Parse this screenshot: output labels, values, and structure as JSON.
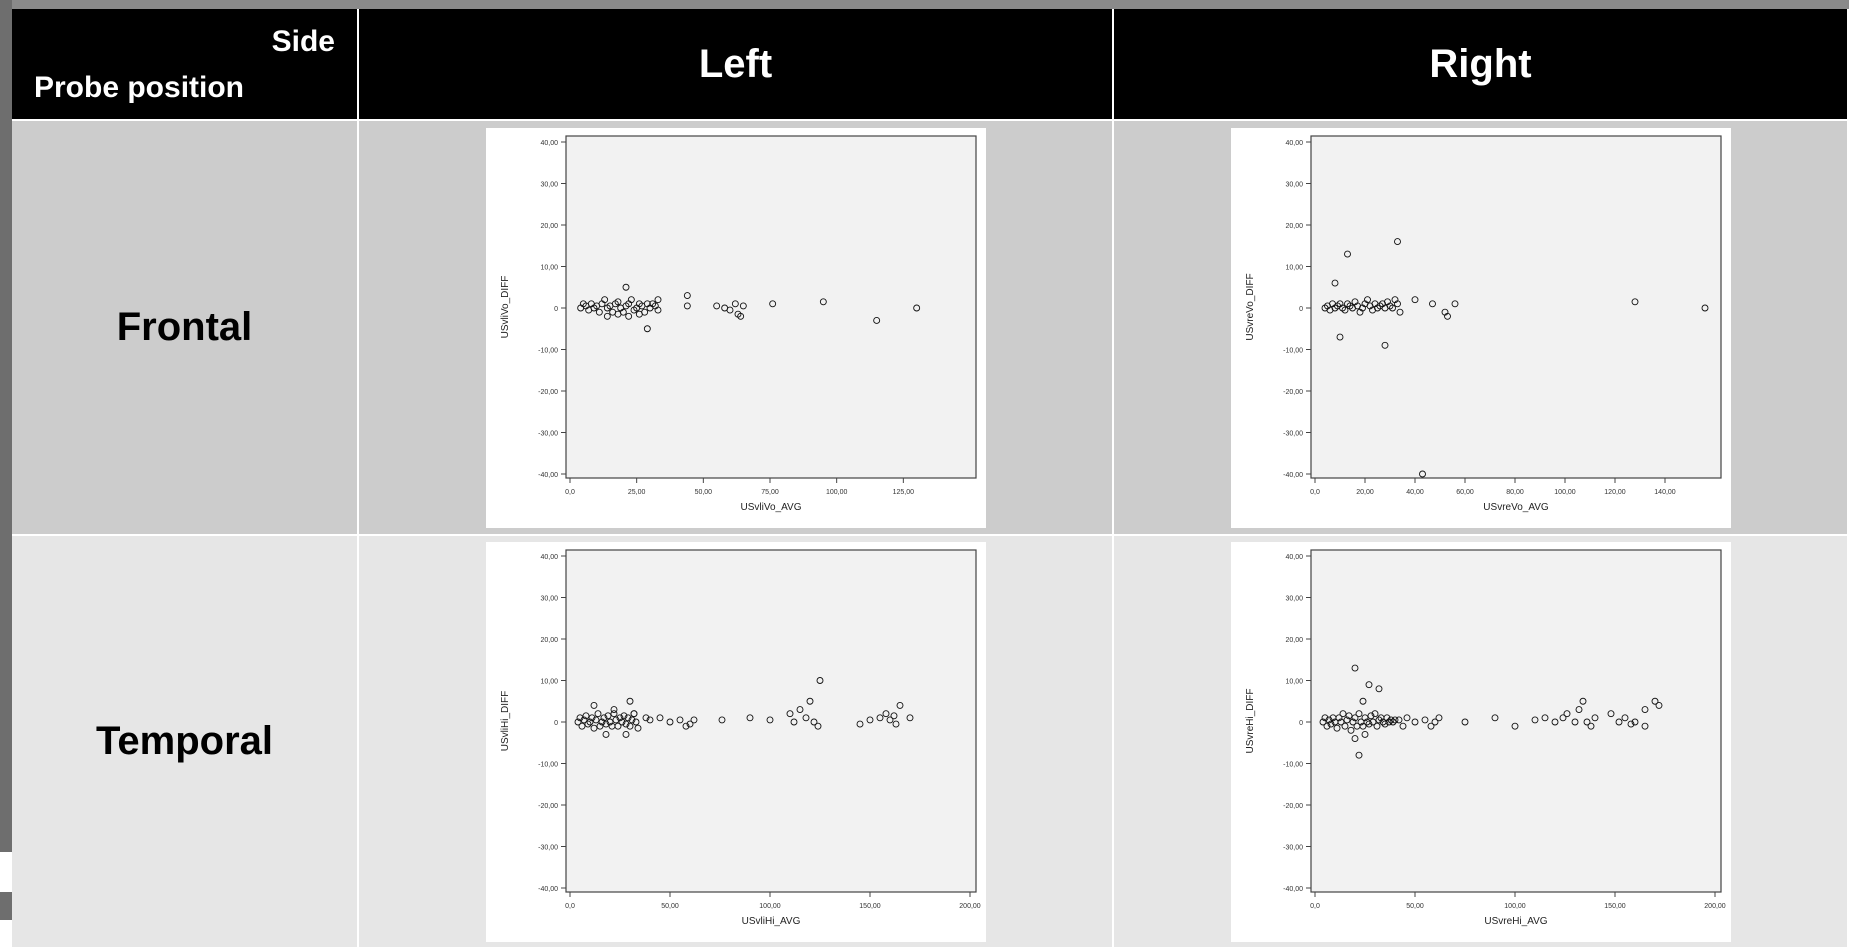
{
  "slide_title": "",
  "table": {
    "corner": {
      "side_label": "Side",
      "probe_label": "Probe position"
    },
    "columns": [
      "Left",
      "Right"
    ],
    "rows": [
      "Frontal",
      "Temporal"
    ]
  },
  "colors": {
    "header_bg": "#000000",
    "row1_bg": "#cccccc",
    "row2_bg": "#e6e6e6",
    "plot_area": "#f2f2f2"
  },
  "chart_data": [
    {
      "type": "scatter",
      "position": "Frontal-Left",
      "xlabel": "USvliVo_AVG",
      "ylabel": "USvliVo_DIFF",
      "xlim": [
        0,
        150
      ],
      "ylim": [
        -40,
        40
      ],
      "xticks": [
        "0,0",
        "25,00",
        "50,00",
        "75,00",
        "100,00",
        "125,00"
      ],
      "yticks": [
        "40,00",
        "30,00",
        "20,00",
        "10,00",
        "0",
        "-10,00",
        "-20,00",
        "-30,00",
        "-40,00"
      ],
      "points": [
        [
          4,
          0
        ],
        [
          5,
          1
        ],
        [
          6,
          0.5
        ],
        [
          7,
          -0.5
        ],
        [
          8,
          1
        ],
        [
          9,
          0
        ],
        [
          10,
          0.5
        ],
        [
          11,
          -1
        ],
        [
          12,
          1
        ],
        [
          13,
          2
        ],
        [
          14,
          0
        ],
        [
          15,
          0.5
        ],
        [
          16,
          -1
        ],
        [
          17,
          1
        ],
        [
          18,
          1.5
        ],
        [
          19,
          0
        ],
        [
          20,
          -1
        ],
        [
          21,
          0.5
        ],
        [
          22,
          1
        ],
        [
          23,
          2
        ],
        [
          24,
          -0.5
        ],
        [
          25,
          0
        ],
        [
          26,
          1
        ],
        [
          27,
          0.5
        ],
        [
          28,
          -1
        ],
        [
          29,
          1
        ],
        [
          30,
          0
        ],
        [
          31,
          1
        ],
        [
          32,
          0.5
        ],
        [
          33,
          -0.5
        ],
        [
          14,
          -2
        ],
        [
          18,
          -1.5
        ],
        [
          22,
          -2
        ],
        [
          26,
          -1.5
        ],
        [
          21,
          5
        ],
        [
          29,
          -5
        ],
        [
          33,
          2
        ],
        [
          44,
          3
        ],
        [
          44,
          0.5
        ],
        [
          55,
          0.5
        ],
        [
          58,
          0
        ],
        [
          60,
          -0.5
        ],
        [
          62,
          1
        ],
        [
          63,
          -1.5
        ],
        [
          64,
          -2
        ],
        [
          65,
          0.5
        ],
        [
          76,
          1
        ],
        [
          95,
          1.5
        ],
        [
          115,
          -3
        ],
        [
          130,
          0
        ]
      ]
    },
    {
      "type": "scatter",
      "position": "Frontal-Right",
      "xlabel": "USvreVo_AVG",
      "ylabel": "USvreVo_DIFF",
      "xlim": [
        0,
        160
      ],
      "ylim": [
        -40,
        40
      ],
      "xticks": [
        "0,0",
        "20,00",
        "40,00",
        "60,00",
        "80,00",
        "100,00",
        "120,00",
        "140,00"
      ],
      "yticks": [
        "40,00",
        "30,00",
        "20,00",
        "10,00",
        "0",
        "-10,00",
        "-20,00",
        "-30,00",
        "-40,00"
      ],
      "points": [
        [
          4,
          0
        ],
        [
          5,
          0.5
        ],
        [
          6,
          -0.5
        ],
        [
          7,
          1
        ],
        [
          8,
          0
        ],
        [
          9,
          0.5
        ],
        [
          10,
          1
        ],
        [
          11,
          0
        ],
        [
          12,
          -0.5
        ],
        [
          13,
          1
        ],
        [
          14,
          0.5
        ],
        [
          15,
          0
        ],
        [
          16,
          1.5
        ],
        [
          17,
          0.5
        ],
        [
          18,
          -1
        ],
        [
          19,
          0
        ],
        [
          20,
          1
        ],
        [
          21,
          2
        ],
        [
          22,
          0.5
        ],
        [
          23,
          -0.5
        ],
        [
          24,
          1
        ],
        [
          25,
          0
        ],
        [
          26,
          0.5
        ],
        [
          27,
          1
        ],
        [
          28,
          0
        ],
        [
          29,
          1.5
        ],
        [
          30,
          0.5
        ],
        [
          31,
          0
        ],
        [
          32,
          2
        ],
        [
          33,
          1
        ],
        [
          34,
          -1
        ],
        [
          8,
          6
        ],
        [
          10,
          -7
        ],
        [
          13,
          13
        ],
        [
          28,
          -9
        ],
        [
          33,
          16
        ],
        [
          40,
          2
        ],
        [
          47,
          1
        ],
        [
          52,
          -1
        ],
        [
          53,
          -2
        ],
        [
          56,
          1
        ],
        [
          128,
          1.5
        ],
        [
          156,
          0
        ],
        [
          43,
          -40
        ]
      ]
    },
    {
      "type": "scatter",
      "position": "Temporal-Left",
      "xlabel": "USvliHi_AVG",
      "ylabel": "USvliHi_DIFF",
      "xlim": [
        0,
        200
      ],
      "ylim": [
        -40,
        40
      ],
      "xticks": [
        "0,0",
        "50,00",
        "100,00",
        "150,00",
        "200,00"
      ],
      "yticks": [
        "40,00",
        "30,00",
        "20,00",
        "10,00",
        "0",
        "-10,00",
        "-20,00",
        "-30,00",
        "-40,00"
      ],
      "points": [
        [
          4,
          0
        ],
        [
          5,
          1
        ],
        [
          6,
          -1
        ],
        [
          7,
          0.5
        ],
        [
          8,
          1.5
        ],
        [
          9,
          -0.5
        ],
        [
          10,
          0
        ],
        [
          11,
          1
        ],
        [
          12,
          -1.5
        ],
        [
          13,
          0.5
        ],
        [
          14,
          2
        ],
        [
          15,
          -1
        ],
        [
          16,
          0
        ],
        [
          17,
          1
        ],
        [
          18,
          -0.5
        ],
        [
          19,
          1.5
        ],
        [
          20,
          0
        ],
        [
          21,
          -1
        ],
        [
          22,
          2
        ],
        [
          23,
          0.5
        ],
        [
          24,
          -1
        ],
        [
          25,
          1
        ],
        [
          26,
          0
        ],
        [
          27,
          1.5
        ],
        [
          28,
          -0.5
        ],
        [
          29,
          1
        ],
        [
          30,
          -1
        ],
        [
          31,
          0.5
        ],
        [
          32,
          2
        ],
        [
          33,
          0
        ],
        [
          34,
          -1.5
        ],
        [
          12,
          4
        ],
        [
          18,
          -3
        ],
        [
          22,
          3
        ],
        [
          28,
          -3
        ],
        [
          30,
          5
        ],
        [
          32,
          2
        ],
        [
          38,
          1
        ],
        [
          40,
          0.5
        ],
        [
          45,
          1
        ],
        [
          50,
          0
        ],
        [
          55,
          0.5
        ],
        [
          58,
          -1
        ],
        [
          60,
          -0.5
        ],
        [
          62,
          0.5
        ],
        [
          76,
          0.5
        ],
        [
          90,
          1
        ],
        [
          100,
          0.5
        ],
        [
          110,
          2
        ],
        [
          112,
          0
        ],
        [
          115,
          3
        ],
        [
          118,
          1
        ],
        [
          120,
          5
        ],
        [
          122,
          0
        ],
        [
          124,
          -1
        ],
        [
          125,
          10
        ],
        [
          145,
          -0.5
        ],
        [
          150,
          0.5
        ],
        [
          155,
          1
        ],
        [
          158,
          2
        ],
        [
          160,
          0.5
        ],
        [
          162,
          1.5
        ],
        [
          163,
          -0.5
        ],
        [
          165,
          4
        ],
        [
          170,
          1
        ]
      ]
    },
    {
      "type": "scatter",
      "position": "Temporal-Right",
      "xlabel": "USvreHi_AVG",
      "ylabel": "USvreHi_DIFF",
      "xlim": [
        0,
        200
      ],
      "ylim": [
        -40,
        40
      ],
      "xticks": [
        "0,0",
        "50,00",
        "100,00",
        "150,00",
        "200,00"
      ],
      "yticks": [
        "40,00",
        "30,00",
        "20,00",
        "10,00",
        "0",
        "-10,00",
        "-20,00",
        "-30,00",
        "-40,00"
      ],
      "points": [
        [
          4,
          0
        ],
        [
          5,
          1
        ],
        [
          6,
          -1
        ],
        [
          7,
          0.5
        ],
        [
          8,
          -0.5
        ],
        [
          9,
          1
        ],
        [
          10,
          0
        ],
        [
          11,
          -1.5
        ],
        [
          12,
          1
        ],
        [
          13,
          0
        ],
        [
          14,
          2
        ],
        [
          15,
          -1
        ],
        [
          16,
          0.5
        ],
        [
          17,
          1.5
        ],
        [
          18,
          -2
        ],
        [
          19,
          0
        ],
        [
          20,
          1
        ],
        [
          21,
          -1
        ],
        [
          22,
          2
        ],
        [
          23,
          0
        ],
        [
          24,
          -1
        ],
        [
          25,
          1
        ],
        [
          26,
          0
        ],
        [
          27,
          -0.5
        ],
        [
          28,
          1.5
        ],
        [
          29,
          0
        ],
        [
          30,
          2
        ],
        [
          31,
          -1
        ],
        [
          32,
          0.5
        ],
        [
          33,
          1
        ],
        [
          34,
          0
        ],
        [
          35,
          -0.5
        ],
        [
          36,
          1
        ],
        [
          37,
          0
        ],
        [
          38,
          0.5
        ],
        [
          39,
          0
        ],
        [
          40,
          0.5
        ],
        [
          42,
          0.5
        ],
        [
          44,
          -1
        ],
        [
          46,
          1
        ],
        [
          50,
          0
        ],
        [
          55,
          0.5
        ],
        [
          58,
          -1
        ],
        [
          60,
          0
        ],
        [
          62,
          1
        ],
        [
          22,
          -8
        ],
        [
          20,
          13
        ],
        [
          24,
          5
        ],
        [
          27,
          9
        ],
        [
          32,
          8
        ],
        [
          20,
          -4
        ],
        [
          25,
          -3
        ],
        [
          75,
          0
        ],
        [
          90,
          1
        ],
        [
          100,
          -1
        ],
        [
          110,
          0.5
        ],
        [
          115,
          1
        ],
        [
          120,
          0
        ],
        [
          124,
          1
        ],
        [
          126,
          2
        ],
        [
          130,
          0
        ],
        [
          132,
          3
        ],
        [
          134,
          5
        ],
        [
          136,
          0
        ],
        [
          138,
          -1
        ],
        [
          140,
          1
        ],
        [
          148,
          2
        ],
        [
          152,
          0
        ],
        [
          155,
          1
        ],
        [
          158,
          -0.5
        ],
        [
          160,
          0
        ],
        [
          165,
          3
        ],
        [
          170,
          5
        ],
        [
          172,
          4
        ],
        [
          165,
          -1
        ]
      ]
    }
  ]
}
